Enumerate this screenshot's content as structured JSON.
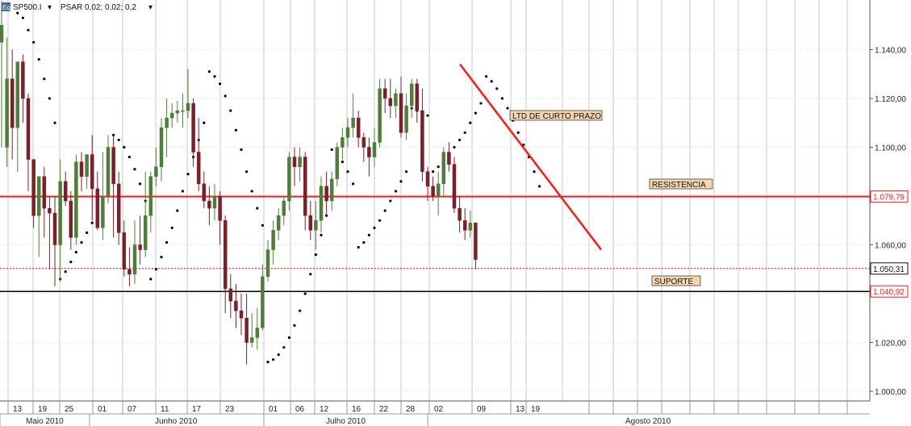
{
  "header": {
    "symbol_badge": "Eq",
    "symbol": "SP500.I",
    "indicator": "PSAR 0,02; 0,02; 0,2"
  },
  "chart_data": {
    "type": "candlestick",
    "title": "SP500.I",
    "ylim": [
      994,
      1162
    ],
    "y_ticks": [
      "1.000,00",
      "1.020,00",
      "1.040,00",
      "1.060,00",
      "1.080,00",
      "1.100,00",
      "1.120,00",
      "1.140,00"
    ],
    "y_tick_values": [
      1000,
      1020,
      1040,
      1060,
      1080,
      1100,
      1120,
      1140
    ],
    "date_ticks": [
      "13",
      "19",
      "25",
      "01",
      "07",
      "11",
      "17",
      "23",
      "01",
      "06",
      "12",
      "16",
      "22",
      "28",
      "02",
      "09",
      "13",
      "19"
    ],
    "months": [
      "Maio 2010",
      "Junho 2010",
      "Julho 2010",
      "Agosto 2010"
    ],
    "candles": [
      [
        1143,
        1160,
        1150,
        1100
      ],
      [
        1100,
        1145,
        1128,
        1092
      ],
      [
        1128,
        1140,
        1108,
        1095
      ],
      [
        1108,
        1135,
        1135,
        1090
      ],
      [
        1135,
        1138,
        1120,
        1110
      ],
      [
        1120,
        1122,
        1095,
        1082
      ],
      [
        1095,
        1090,
        1072,
        1067
      ],
      [
        1072,
        1088,
        1088,
        1055
      ],
      [
        1088,
        1092,
        1075,
        1063
      ],
      [
        1075,
        1080,
        1073,
        1050
      ],
      [
        1073,
        1080,
        1060,
        1043
      ],
      [
        1060,
        1095,
        1086,
        1045
      ],
      [
        1086,
        1090,
        1078,
        1076
      ],
      [
        1078,
        1082,
        1063,
        1058
      ],
      [
        1063,
        1097,
        1094,
        1060
      ],
      [
        1094,
        1098,
        1088,
        1082
      ],
      [
        1088,
        1097,
        1097,
        1083
      ],
      [
        1097,
        1105,
        1083,
        1070
      ],
      [
        1083,
        1090,
        1067,
        1066
      ],
      [
        1067,
        1098,
        1080,
        1062
      ],
      [
        1080,
        1105,
        1100,
        1077
      ],
      [
        1100,
        1105,
        1085,
        1063
      ],
      [
        1085,
        1090,
        1065,
        1060
      ],
      [
        1065,
        1070,
        1050,
        1047
      ],
      [
        1050,
        1059,
        1048,
        1043
      ],
      [
        1048,
        1070,
        1060,
        1044
      ],
      [
        1060,
        1072,
        1058,
        1052
      ],
      [
        1058,
        1090,
        1072,
        1055
      ],
      [
        1072,
        1090,
        1088,
        1065
      ],
      [
        1088,
        1100,
        1092,
        1084
      ],
      [
        1092,
        1112,
        1108,
        1086
      ],
      [
        1108,
        1120,
        1112,
        1096
      ],
      [
        1112,
        1118,
        1114,
        1108
      ],
      [
        1114,
        1119,
        1115,
        1110
      ],
      [
        1115,
        1122,
        1115,
        1108
      ],
      [
        1115,
        1132,
        1118,
        1112
      ],
      [
        1118,
        1120,
        1098,
        1092
      ],
      [
        1098,
        1112,
        1085,
        1082
      ],
      [
        1085,
        1090,
        1078,
        1075
      ],
      [
        1078,
        1084,
        1075,
        1068
      ],
      [
        1075,
        1085,
        1080,
        1070
      ],
      [
        1080,
        1082,
        1070,
        1060
      ],
      [
        1070,
        1072,
        1042,
        1032
      ],
      [
        1042,
        1048,
        1037,
        1030
      ],
      [
        1037,
        1044,
        1033,
        1026
      ],
      [
        1033,
        1040,
        1030,
        1023
      ],
      [
        1030,
        1040,
        1020,
        1011
      ],
      [
        1020,
        1032,
        1022,
        1018
      ],
      [
        1022,
        1034,
        1026,
        1017
      ],
      [
        1026,
        1052,
        1047,
        1025
      ],
      [
        1047,
        1062,
        1058,
        1045
      ],
      [
        1058,
        1070,
        1066,
        1052
      ],
      [
        1066,
        1075,
        1072,
        1062
      ],
      [
        1072,
        1080,
        1078,
        1068
      ],
      [
        1078,
        1098,
        1096,
        1074
      ],
      [
        1096,
        1100,
        1092,
        1084
      ],
      [
        1092,
        1100,
        1096,
        1086
      ],
      [
        1096,
        1098,
        1072,
        1066
      ],
      [
        1072,
        1078,
        1066,
        1062
      ],
      [
        1066,
        1078,
        1070,
        1058
      ],
      [
        1070,
        1088,
        1084,
        1065
      ],
      [
        1084,
        1090,
        1078,
        1072
      ],
      [
        1078,
        1090,
        1087,
        1074
      ],
      [
        1087,
        1102,
        1100,
        1084
      ],
      [
        1100,
        1108,
        1104,
        1095
      ],
      [
        1104,
        1112,
        1108,
        1100
      ],
      [
        1108,
        1122,
        1112,
        1104
      ],
      [
        1112,
        1115,
        1104,
        1100
      ],
      [
        1104,
        1106,
        1100,
        1094
      ],
      [
        1100,
        1104,
        1096,
        1088
      ],
      [
        1096,
        1108,
        1102,
        1092
      ],
      [
        1102,
        1128,
        1124,
        1100
      ],
      [
        1124,
        1128,
        1120,
        1114
      ],
      [
        1120,
        1128,
        1117,
        1112
      ],
      [
        1117,
        1124,
        1122,
        1112
      ],
      [
        1122,
        1129,
        1106,
        1104
      ],
      [
        1106,
        1122,
        1117,
        1103
      ],
      [
        1117,
        1128,
        1126,
        1112
      ],
      [
        1126,
        1128,
        1115,
        1110
      ],
      [
        1115,
        1124,
        1090,
        1086
      ],
      [
        1090,
        1092,
        1084,
        1078
      ],
      [
        1084,
        1088,
        1080,
        1078
      ],
      [
        1080,
        1090,
        1085,
        1072
      ],
      [
        1085,
        1100,
        1098,
        1080
      ],
      [
        1098,
        1102,
        1093,
        1090
      ],
      [
        1093,
        1096,
        1075,
        1073
      ],
      [
        1075,
        1080,
        1070,
        1065
      ],
      [
        1070,
        1075,
        1066,
        1062
      ],
      [
        1066,
        1074,
        1069,
        1063
      ],
      [
        1069,
        1069,
        1054,
        1050
      ]
    ],
    "psar": [
      [
        3,
        1155
      ],
      [
        4,
        1153
      ],
      [
        5,
        1148
      ],
      [
        6,
        1143
      ],
      [
        7,
        1136
      ],
      [
        8,
        1128
      ],
      [
        9,
        1120
      ],
      [
        10,
        1110
      ],
      [
        11,
        1046
      ],
      [
        12,
        1049
      ],
      [
        13,
        1053
      ],
      [
        14,
        1057
      ],
      [
        15,
        1061
      ],
      [
        16,
        1065
      ],
      [
        17,
        1069
      ],
      [
        18,
        1073
      ],
      [
        19,
        1077
      ],
      [
        20,
        1081
      ],
      [
        21,
        1105
      ],
      [
        22,
        1103
      ],
      [
        23,
        1100
      ],
      [
        24,
        1096
      ],
      [
        25,
        1091
      ],
      [
        26,
        1085
      ],
      [
        27,
        1078
      ],
      [
        28,
        1046
      ],
      [
        29,
        1050
      ],
      [
        30,
        1055
      ],
      [
        31,
        1061
      ],
      [
        32,
        1067
      ],
      [
        33,
        1074
      ],
      [
        34,
        1082
      ],
      [
        35,
        1089
      ],
      [
        36,
        1096
      ],
      [
        37,
        1103
      ],
      [
        38,
        1110
      ],
      [
        39,
        1131
      ],
      [
        40,
        1129
      ],
      [
        41,
        1126
      ],
      [
        42,
        1121
      ],
      [
        43,
        1115
      ],
      [
        44,
        1107
      ],
      [
        45,
        1099
      ],
      [
        46,
        1090
      ],
      [
        47,
        1082
      ],
      [
        48,
        1075
      ],
      [
        49,
        1068
      ],
      [
        50,
        1012
      ],
      [
        51,
        1013
      ],
      [
        52,
        1015
      ],
      [
        53,
        1018
      ],
      [
        54,
        1022
      ],
      [
        55,
        1027
      ],
      [
        56,
        1033
      ],
      [
        57,
        1040
      ],
      [
        58,
        1048
      ],
      [
        59,
        1056
      ],
      [
        60,
        1064
      ],
      [
        61,
        1072
      ],
      [
        62,
        1099
      ],
      [
        63,
        1097
      ],
      [
        64,
        1094
      ],
      [
        65,
        1090
      ],
      [
        66,
        1085
      ],
      [
        67,
        1059
      ],
      [
        68,
        1061
      ],
      [
        69,
        1064
      ],
      [
        70,
        1067
      ],
      [
        71,
        1070
      ],
      [
        72,
        1074
      ],
      [
        73,
        1078
      ],
      [
        74,
        1082
      ],
      [
        75,
        1086
      ],
      [
        76,
        1090
      ],
      [
        77,
        1116
      ],
      [
        78,
        1115
      ],
      [
        79,
        1114
      ],
      [
        80,
        1113
      ],
      [
        81,
        1090
      ],
      [
        82,
        1092
      ],
      [
        83,
        1094
      ],
      [
        84,
        1097
      ],
      [
        85,
        1100
      ],
      [
        86,
        1103
      ],
      [
        87,
        1106
      ],
      [
        88,
        1110
      ],
      [
        89,
        1114
      ],
      [
        90,
        1118
      ],
      [
        91,
        1129
      ],
      [
        92,
        1127
      ],
      [
        93,
        1124
      ],
      [
        94,
        1120
      ],
      [
        95,
        1116
      ],
      [
        96,
        1111
      ],
      [
        97,
        1106
      ],
      [
        98,
        1101
      ],
      [
        99,
        1096
      ],
      [
        100,
        1090
      ],
      [
        101,
        1084
      ]
    ],
    "resistance_level": 1079.79,
    "support_level": 1040.92,
    "last_price": 1050.31,
    "trendline": {
      "from": [
        1,
        1134
      ],
      "to": [
        1,
        1058
      ]
    },
    "annotations": {
      "ltd": "LTD DE CURTO PRAZO",
      "resistance": "RESISTENCIA",
      "support": "SUPORTE"
    },
    "price_labels": {
      "resistance": "1.079,79",
      "last": "1.050,31",
      "support": "1.040,92"
    },
    "colors": {
      "bull": "#4f7d3a",
      "bear": "#7d1f2a",
      "resistance": "#ff1a1a",
      "support": "#000000",
      "last": "#e00000",
      "grid": "#c8c8c8",
      "annotation_bg": "#f5d5b0"
    }
  }
}
